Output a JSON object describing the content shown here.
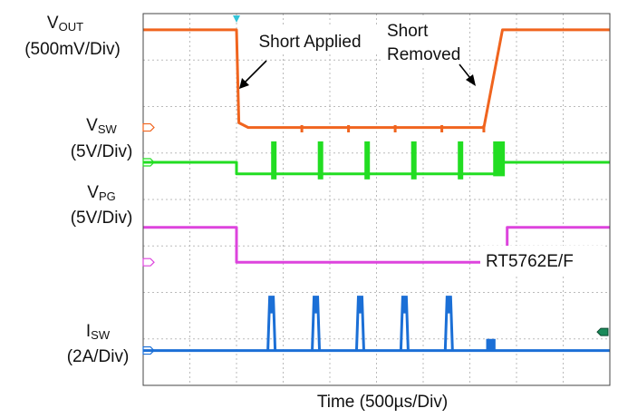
{
  "chart_data": {
    "type": "line",
    "title": "",
    "xlabel": "Time (500µs/Div)",
    "x_divisions": 10,
    "y_divisions": 8,
    "grid": true,
    "series": [
      {
        "key": "vout",
        "label_main": "V",
        "label_sub": "OUT",
        "scale": "(500mV/Div)",
        "color": "#f0641e",
        "points": [
          [
            0,
            0.35
          ],
          [
            2,
            0.35
          ],
          [
            2.05,
            2.35
          ],
          [
            2.25,
            2.45
          ],
          [
            7.3,
            2.45
          ],
          [
            7.7,
            0.35
          ],
          [
            10,
            0.35
          ]
        ],
        "glitches": [
          [
            3.4,
            2.4
          ],
          [
            4.4,
            2.4
          ],
          [
            5.4,
            2.4
          ],
          [
            6.4,
            2.4
          ],
          [
            7.3,
            2.4
          ]
        ]
      },
      {
        "key": "vsw",
        "label_main": "V",
        "label_sub": "SW",
        "scale": "(5V/Div)",
        "color": "#22dd22",
        "base_level": 3.2,
        "points": [
          [
            0,
            3.2
          ],
          [
            2,
            3.2
          ],
          [
            2,
            3.45
          ],
          [
            7.6,
            3.45
          ],
          [
            7.6,
            3.2
          ],
          [
            10,
            3.2
          ]
        ],
        "pulses": [
          [
            2.8,
            2.75
          ],
          [
            3.8,
            2.75
          ],
          [
            4.8,
            2.75
          ],
          [
            5.8,
            2.75
          ],
          [
            6.8,
            2.75
          ]
        ],
        "burst": [
          [
            7.5,
            7.75,
            2.75
          ]
        ]
      },
      {
        "key": "vpg",
        "label_main": "V",
        "label_sub": "PG",
        "scale": "(5V/Div)",
        "color": "#dd44dd",
        "points": [
          [
            0,
            4.6
          ],
          [
            2,
            4.6
          ],
          [
            2,
            5.35
          ],
          [
            7.8,
            5.35
          ],
          [
            7.8,
            4.6
          ],
          [
            10,
            4.6
          ]
        ]
      },
      {
        "key": "isw",
        "label_main": "I",
        "label_sub": "SW",
        "scale": "(2A/Div)",
        "color": "#1b6fd6",
        "base_level": 7.25,
        "points": [
          [
            0,
            7.25
          ],
          [
            10,
            7.25
          ]
        ],
        "pulses": [
          [
            2.75,
            6.1
          ],
          [
            3.7,
            6.1
          ],
          [
            4.65,
            6.1
          ],
          [
            5.6,
            6.1
          ],
          [
            6.55,
            6.1
          ]
        ],
        "burst": [
          [
            7.35,
            7.55,
            7.0
          ]
        ]
      }
    ],
    "annotations": {
      "short_applied": "Short Applied",
      "short_removed_line1": "Short",
      "short_removed_line2": "Removed",
      "part_number": "RT5762E/F"
    }
  }
}
